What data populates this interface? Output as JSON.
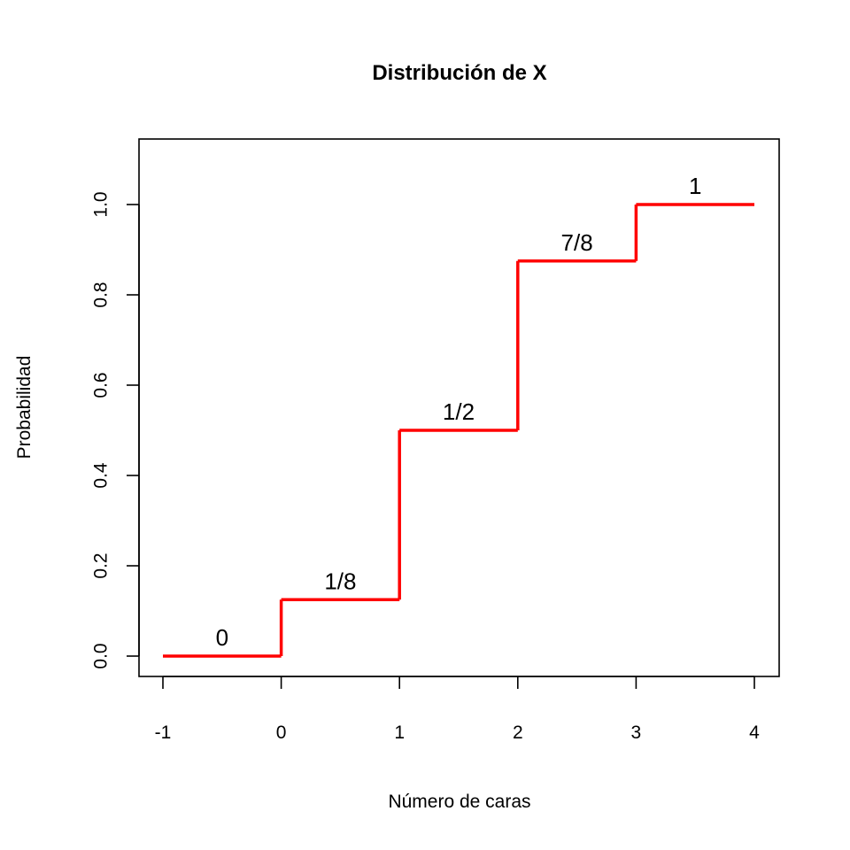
{
  "chart_data": {
    "type": "line",
    "title": "Distribución de X",
    "xlabel": "Número de caras",
    "ylabel": "Probabilidad",
    "xlim": [
      -1,
      4
    ],
    "ylim": [
      0,
      1.1
    ],
    "x_ticks": [
      "-1",
      "0",
      "1",
      "2",
      "3",
      "4"
    ],
    "y_ticks": [
      "0.0",
      "0.2",
      "0.4",
      "0.6",
      "0.8",
      "1.0"
    ],
    "grid": false,
    "line_color": "#ff0000",
    "series": [
      {
        "steps": [
          {
            "x_start": -1,
            "x_end": 0,
            "y": 0,
            "label": "0"
          },
          {
            "x_start": 0,
            "x_end": 1,
            "y": 0.125,
            "label": "1/8"
          },
          {
            "x_start": 1,
            "x_end": 2,
            "y": 0.5,
            "label": "1/2"
          },
          {
            "x_start": 2,
            "x_end": 3,
            "y": 0.875,
            "label": "7/8"
          },
          {
            "x_start": 3,
            "x_end": 4,
            "y": 1,
            "label": "1"
          }
        ]
      }
    ]
  }
}
